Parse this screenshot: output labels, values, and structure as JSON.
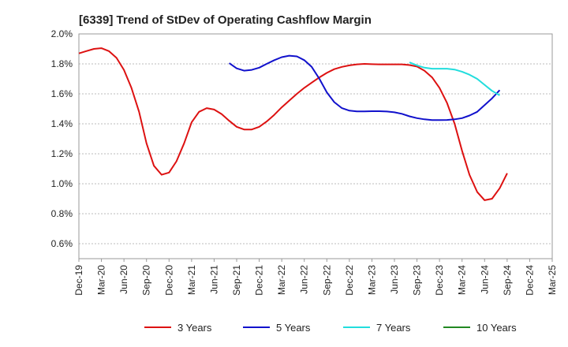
{
  "chart_data": {
    "type": "line",
    "title": "[6339]  Trend of StDev of Operating Cashflow Margin",
    "xlabel": "",
    "ylabel": "",
    "ylim": [
      0.5,
      2.0
    ],
    "y_ticks": [
      0.6,
      0.8,
      1.0,
      1.2,
      1.4,
      1.6,
      1.8,
      2.0
    ],
    "y_tick_labels": [
      "0.6%",
      "0.8%",
      "1.0%",
      "1.2%",
      "1.4%",
      "1.6%",
      "1.8%",
      "2.0%"
    ],
    "x_tick_labels": [
      "Dec-19",
      "Mar-20",
      "Jun-20",
      "Sep-20",
      "Dec-20",
      "Mar-21",
      "Jun-21",
      "Sep-21",
      "Dec-21",
      "Mar-22",
      "Jun-22",
      "Sep-22",
      "Dec-22",
      "Mar-23",
      "Jun-23",
      "Sep-23",
      "Dec-23",
      "Mar-24",
      "Jun-24",
      "Sep-24",
      "Dec-24",
      "Mar-25"
    ],
    "grid": "horizontal-dashed",
    "legend_position": "bottom",
    "series": [
      {
        "name": "3 Years",
        "color": "#dd1111",
        "points": [
          [
            0,
            1.87
          ],
          [
            0.33,
            1.885
          ],
          [
            0.67,
            1.9
          ],
          [
            1,
            1.905
          ],
          [
            1.33,
            1.885
          ],
          [
            1.67,
            1.84
          ],
          [
            2,
            1.76
          ],
          [
            2.33,
            1.64
          ],
          [
            2.67,
            1.48
          ],
          [
            3,
            1.27
          ],
          [
            3.33,
            1.12
          ],
          [
            3.67,
            1.06
          ],
          [
            4,
            1.075
          ],
          [
            4.33,
            1.15
          ],
          [
            4.67,
            1.27
          ],
          [
            5,
            1.41
          ],
          [
            5.33,
            1.48
          ],
          [
            5.67,
            1.505
          ],
          [
            6,
            1.495
          ],
          [
            6.33,
            1.465
          ],
          [
            6.67,
            1.42
          ],
          [
            7,
            1.38
          ],
          [
            7.33,
            1.362
          ],
          [
            7.67,
            1.362
          ],
          [
            8,
            1.38
          ],
          [
            8.33,
            1.415
          ],
          [
            8.67,
            1.46
          ],
          [
            9,
            1.51
          ],
          [
            9.33,
            1.555
          ],
          [
            9.67,
            1.6
          ],
          [
            10,
            1.64
          ],
          [
            10.33,
            1.675
          ],
          [
            10.67,
            1.71
          ],
          [
            11,
            1.74
          ],
          [
            11.33,
            1.765
          ],
          [
            11.67,
            1.78
          ],
          [
            12,
            1.79
          ],
          [
            12.33,
            1.797
          ],
          [
            12.67,
            1.8
          ],
          [
            13,
            1.798
          ],
          [
            13.33,
            1.797
          ],
          [
            13.67,
            1.797
          ],
          [
            14,
            1.797
          ],
          [
            14.33,
            1.797
          ],
          [
            14.67,
            1.792
          ],
          [
            15,
            1.782
          ],
          [
            15.33,
            1.755
          ],
          [
            15.67,
            1.71
          ],
          [
            16,
            1.64
          ],
          [
            16.33,
            1.54
          ],
          [
            16.67,
            1.4
          ],
          [
            17,
            1.22
          ],
          [
            17.33,
            1.06
          ],
          [
            17.67,
            0.945
          ],
          [
            18,
            0.89
          ],
          [
            18.33,
            0.9
          ],
          [
            18.67,
            0.97
          ],
          [
            19,
            1.07
          ]
        ]
      },
      {
        "name": "5 Years",
        "color": "#1111cc",
        "points": [
          [
            6.67,
            1.805
          ],
          [
            7,
            1.77
          ],
          [
            7.33,
            1.755
          ],
          [
            7.67,
            1.76
          ],
          [
            8,
            1.775
          ],
          [
            8.33,
            1.8
          ],
          [
            8.67,
            1.825
          ],
          [
            9,
            1.845
          ],
          [
            9.33,
            1.855
          ],
          [
            9.67,
            1.85
          ],
          [
            10,
            1.825
          ],
          [
            10.33,
            1.78
          ],
          [
            10.67,
            1.7
          ],
          [
            11,
            1.61
          ],
          [
            11.33,
            1.545
          ],
          [
            11.67,
            1.505
          ],
          [
            12,
            1.488
          ],
          [
            12.33,
            1.483
          ],
          [
            12.67,
            1.483
          ],
          [
            13,
            1.484
          ],
          [
            13.33,
            1.484
          ],
          [
            13.67,
            1.482
          ],
          [
            14,
            1.477
          ],
          [
            14.33,
            1.467
          ],
          [
            14.67,
            1.45
          ],
          [
            15,
            1.438
          ],
          [
            15.33,
            1.43
          ],
          [
            15.67,
            1.425
          ],
          [
            16,
            1.425
          ],
          [
            16.33,
            1.426
          ],
          [
            16.67,
            1.43
          ],
          [
            17,
            1.438
          ],
          [
            17.33,
            1.455
          ],
          [
            17.67,
            1.48
          ],
          [
            18,
            1.525
          ],
          [
            18.33,
            1.57
          ],
          [
            18.67,
            1.625
          ]
        ]
      },
      {
        "name": "7 Years",
        "color": "#22dddd",
        "points": [
          [
            14.67,
            1.81
          ],
          [
            15,
            1.79
          ],
          [
            15.33,
            1.775
          ],
          [
            15.67,
            1.768
          ],
          [
            16,
            1.768
          ],
          [
            16.33,
            1.768
          ],
          [
            16.67,
            1.762
          ],
          [
            17,
            1.748
          ],
          [
            17.33,
            1.728
          ],
          [
            17.67,
            1.7
          ],
          [
            18,
            1.66
          ],
          [
            18.33,
            1.62
          ],
          [
            18.67,
            1.59
          ]
        ]
      },
      {
        "name": "10 Years",
        "color": "#228822",
        "points": []
      }
    ]
  }
}
